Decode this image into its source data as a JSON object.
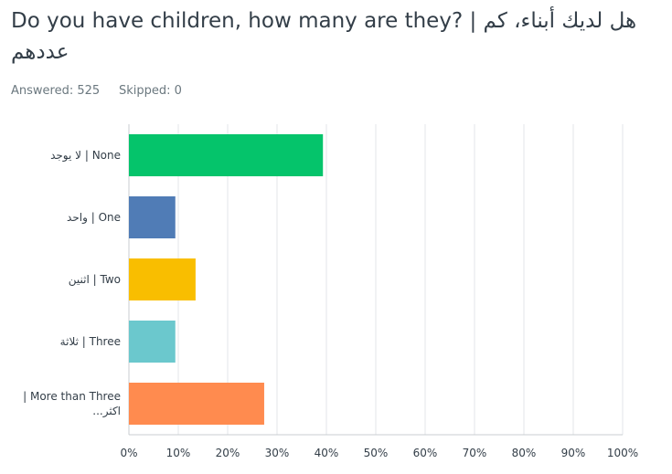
{
  "chart_data": {
    "type": "bar",
    "orientation": "horizontal",
    "title": "Do you have children, how many are they? | هل لديك أبناء، كم عددهم",
    "answered": "Answered: 525",
    "skipped": "Skipped: 0",
    "categories": [
      "None | لا يوجد",
      "One | واحد",
      "Two | اثنين",
      "Three | ثلاثة",
      "More than Three | اكثر..."
    ],
    "values": [
      39.3,
      9.4,
      13.5,
      9.4,
      27.4
    ],
    "colors": [
      "#05c46b",
      "#507cb6",
      "#f9be00",
      "#6bc8cd",
      "#ff8b4f"
    ],
    "xlim": [
      0,
      100
    ],
    "xticks": [
      {
        "value": 0,
        "label": "0%"
      },
      {
        "value": 10,
        "label": "10%"
      },
      {
        "value": 20,
        "label": "20%"
      },
      {
        "value": 30,
        "label": "30%"
      },
      {
        "value": 40,
        "label": "40%"
      },
      {
        "value": 50,
        "label": "50%"
      },
      {
        "value": 60,
        "label": "60%"
      },
      {
        "value": 70,
        "label": "70%"
      },
      {
        "value": 80,
        "label": "80%"
      },
      {
        "value": 90,
        "label": "90%"
      },
      {
        "value": 100,
        "label": "100%"
      }
    ],
    "grid": true
  }
}
